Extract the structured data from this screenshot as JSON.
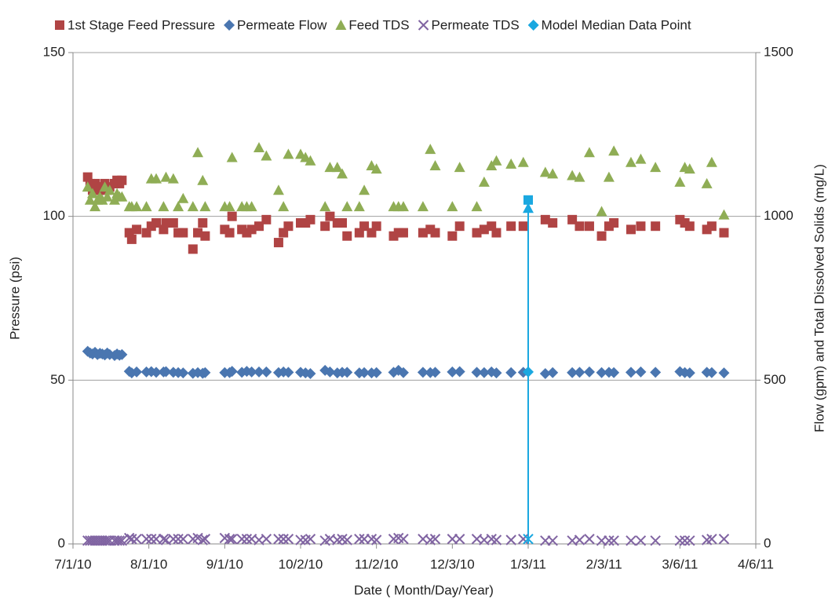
{
  "chart_data": {
    "type": "scatter",
    "x_label": "Date ( Month/Day/Year)",
    "y_label": "Pressure (psi)",
    "y2_label": "Flow (gpm) and Total Dissolved Solids (mg/L)",
    "xlim": [
      "7/1/10",
      "4/6/11"
    ],
    "xticks": [
      "7/1/10",
      "8/1/10",
      "9/1/10",
      "10/2/10",
      "11/2/10",
      "12/3/10",
      "1/3/11",
      "2/3/11",
      "3/6/11",
      "4/6/11"
    ],
    "ylim": [
      0,
      150
    ],
    "yticks": [
      0,
      50,
      100,
      150
    ],
    "y2lim": [
      0,
      1500
    ],
    "y2ticks": [
      0,
      500,
      1000,
      1500
    ],
    "grid": true,
    "legend": "top",
    "x": [
      "7/7/10",
      "7/8/10",
      "7/9/10",
      "7/10/10",
      "7/11/10",
      "7/12/10",
      "7/13/10",
      "7/14/10",
      "7/15/10",
      "7/16/10",
      "7/18/10",
      "7/19/10",
      "7/20/10",
      "7/21/10",
      "7/24/10",
      "7/25/10",
      "7/27/10",
      "7/31/10",
      "8/2/10",
      "8/4/10",
      "8/7/10",
      "8/8/10",
      "8/11/10",
      "8/13/10",
      "8/15/10",
      "8/19/10",
      "8/21/10",
      "8/23/10",
      "8/24/10",
      "9/1/10",
      "9/3/10",
      "9/4/10",
      "9/8/10",
      "9/10/10",
      "9/12/10",
      "9/15/10",
      "9/18/10",
      "9/23/10",
      "9/25/10",
      "9/27/10",
      "10/2/10",
      "10/4/10",
      "10/6/10",
      "10/12/10",
      "10/14/10",
      "10/17/10",
      "10/19/10",
      "10/21/10",
      "10/26/10",
      "10/28/10",
      "10/31/10",
      "11/2/10",
      "11/9/10",
      "11/11/10",
      "11/13/10",
      "11/21/10",
      "11/24/10",
      "11/26/10",
      "12/3/10",
      "12/6/10",
      "12/13/10",
      "12/16/10",
      "12/19/10",
      "12/21/10",
      "12/27/10",
      "1/1/11",
      "1/10/11",
      "1/13/11",
      "1/21/11",
      "1/24/11",
      "1/28/11",
      "2/2/11",
      "2/5/11",
      "2/7/11",
      "2/14/11",
      "2/18/11",
      "2/24/11",
      "3/6/11",
      "3/8/11",
      "3/10/11",
      "3/17/11",
      "3/19/11",
      "3/24/11"
    ],
    "series": [
      {
        "name": "1st Stage Feed Pressure",
        "color": "#b04444",
        "marker": "square",
        "axis": "y",
        "values": [
          112,
          110,
          108,
          110,
          109,
          108,
          109,
          110,
          108,
          109,
          110,
          111,
          110,
          111,
          95,
          93,
          96,
          95,
          97,
          98,
          96,
          98,
          98,
          95,
          95,
          90,
          95,
          98,
          94,
          96,
          95,
          100,
          96,
          95,
          96,
          97,
          99,
          92,
          95,
          97,
          98,
          98,
          99,
          97,
          100,
          98,
          98,
          94,
          95,
          97,
          95,
          97,
          94,
          95,
          95,
          95,
          96,
          95,
          94,
          97,
          95,
          96,
          97,
          95,
          97,
          97,
          99,
          98,
          99,
          97,
          97,
          94,
          97,
          98,
          96,
          97,
          97,
          99,
          98,
          97,
          96,
          97,
          95
        ]
      },
      {
        "name": "Permeate Flow",
        "color": "#4a76b0",
        "marker": "diamond",
        "axis": "y2",
        "values": [
          588,
          583,
          580,
          585,
          578,
          582,
          580,
          577,
          583,
          578,
          575,
          580,
          576,
          578,
          527,
          522,
          525,
          525,
          526,
          524,
          525,
          526,
          524,
          523,
          522,
          521,
          523,
          521,
          523,
          523,
          523,
          527,
          524,
          527,
          525,
          525,
          525,
          523,
          525,
          524,
          524,
          522,
          520,
          530,
          525,
          522,
          524,
          524,
          522,
          523,
          522,
          523,
          524,
          530,
          523,
          524,
          523,
          524,
          525,
          526,
          524,
          523,
          525,
          522,
          523,
          524,
          520,
          523,
          523,
          524,
          525,
          523,
          524,
          523,
          524,
          525,
          524,
          526,
          523,
          522,
          524,
          523,
          522
        ]
      },
      {
        "name": "Feed TDS",
        "color": "#8fad55",
        "marker": "triangle",
        "axis": "y2",
        "values": [
          1090,
          1050,
          1070,
          1030,
          1050,
          1060,
          1050,
          1090,
          1060,
          1080,
          1050,
          1070,
          1060,
          1060,
          1030,
          1030,
          1030,
          1030,
          1115,
          1115,
          1030,
          1120,
          1115,
          1030,
          1055,
          1030,
          1195,
          1110,
          1030,
          1030,
          1030,
          1180,
          1030,
          1030,
          1030,
          1210,
          1185,
          1080,
          1030,
          1190,
          1190,
          1180,
          1170,
          1030,
          1150,
          1150,
          1130,
          1030,
          1030,
          1080,
          1155,
          1145,
          1030,
          1030,
          1030,
          1030,
          1205,
          1155,
          1030,
          1150,
          1030,
          1105,
          1155,
          1170,
          1160,
          1165,
          1135,
          1130,
          1125,
          1120,
          1195,
          1015,
          1120,
          1200,
          1165,
          1175,
          1150,
          1105,
          1150,
          1145,
          1100,
          1165,
          1005
        ]
      },
      {
        "name": "Permeate TDS",
        "color": "#8064a2",
        "marker": "x",
        "axis": "y2",
        "values": [
          10,
          10,
          10,
          10,
          10,
          10,
          10,
          10,
          10,
          10,
          10,
          10,
          10,
          10,
          18,
          15,
          15,
          15,
          15,
          15,
          15,
          12,
          15,
          15,
          15,
          15,
          18,
          12,
          15,
          18,
          15,
          15,
          15,
          15,
          15,
          12,
          15,
          15,
          15,
          15,
          12,
          12,
          15,
          10,
          15,
          12,
          15,
          12,
          15,
          15,
          15,
          12,
          15,
          18,
          15,
          15,
          12,
          15,
          15,
          15,
          15,
          12,
          15,
          12,
          12,
          15,
          10,
          10,
          10,
          12,
          15,
          10,
          10,
          10,
          10,
          10,
          10,
          10,
          10,
          10,
          12,
          15,
          15
        ]
      },
      {
        "name": "Model Median Data Point",
        "color": "#1aa8e0",
        "marker": "diamond",
        "axis": "y2",
        "drop_line": true,
        "markers": [
          "square",
          "triangle",
          "diamond",
          "x"
        ],
        "x": [
          "1/3/11",
          "1/3/11",
          "1/3/11",
          "1/3/11"
        ],
        "values": [
          1050,
          1025,
          525,
          15
        ]
      }
    ]
  }
}
